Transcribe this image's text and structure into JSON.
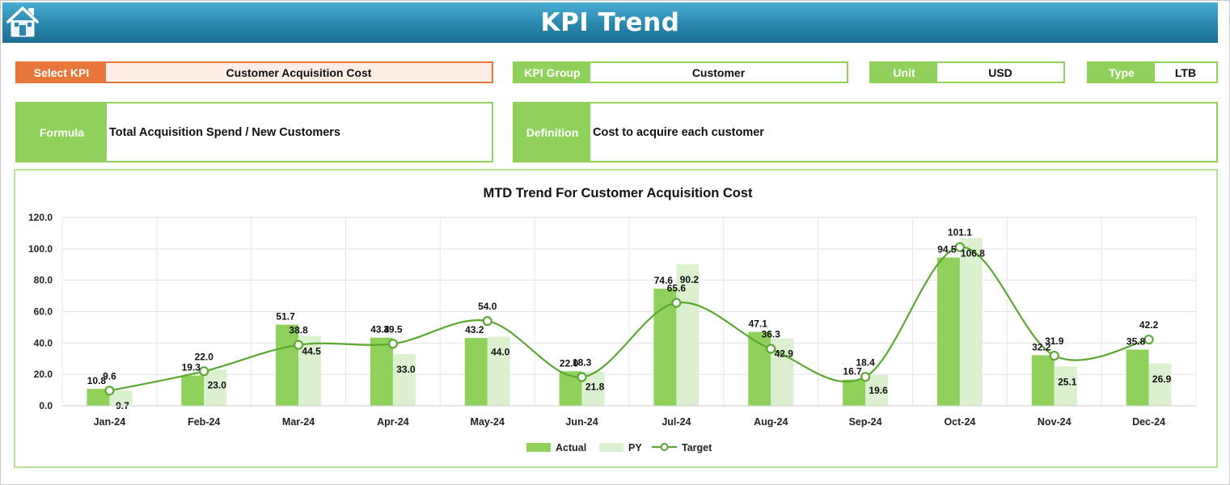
{
  "header": {
    "title": "KPI Trend",
    "home_icon": "home-icon"
  },
  "select_kpi": {
    "label": "Select KPI",
    "value": "Customer Acquisition Cost"
  },
  "kpi_group": {
    "label": "KPI Group",
    "value": "Customer"
  },
  "unit": {
    "label": "Unit",
    "value": "USD"
  },
  "type": {
    "label": "Type",
    "value": "LTB"
  },
  "formula": {
    "label": "Formula",
    "value": "Total Acquisition Spend / New Customers"
  },
  "definition": {
    "label": "Definition",
    "value": "Cost to acquire each customer"
  },
  "colors": {
    "accent_orange": "#e8763a",
    "accent_green": "#8fd15a",
    "pale_green": "#dbf0cf",
    "header_blue": "#2a86ad"
  },
  "chart_data": {
    "type": "bar",
    "title": "MTD Trend For Customer Acquisition Cost",
    "categories": [
      "Jan-24",
      "Feb-24",
      "Mar-24",
      "Apr-24",
      "May-24",
      "Jun-24",
      "Jul-24",
      "Aug-24",
      "Sep-24",
      "Oct-24",
      "Nov-24",
      "Dec-24"
    ],
    "series": [
      {
        "name": "Actual",
        "kind": "bar",
        "color": "#8fd15a",
        "values": [
          10.8,
          19.3,
          51.7,
          43.4,
          43.2,
          22.0,
          74.6,
          47.1,
          16.7,
          94.5,
          32.2,
          35.8
        ]
      },
      {
        "name": "PY",
        "kind": "bar",
        "color": "#dbf0cf",
        "values": [
          9.7,
          23.0,
          44.5,
          33.0,
          44.0,
          21.8,
          90.2,
          42.9,
          19.6,
          106.8,
          25.1,
          26.9
        ]
      },
      {
        "name": "Target",
        "kind": "line",
        "color": "#5aa832",
        "values": [
          9.6,
          22.0,
          38.8,
          39.5,
          54.0,
          18.3,
          65.6,
          36.3,
          18.4,
          101.1,
          31.9,
          42.2
        ]
      }
    ],
    "ylim": [
      0,
      120
    ],
    "yticks": [
      "0.0",
      "20.0",
      "40.0",
      "60.0",
      "80.0",
      "100.0",
      "120.0"
    ],
    "grid": true,
    "legend_position": "bottom"
  }
}
